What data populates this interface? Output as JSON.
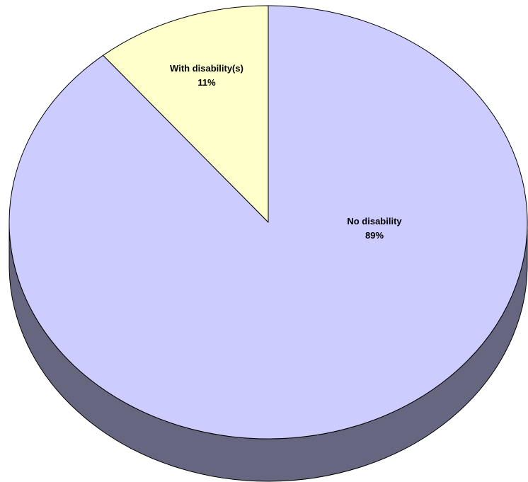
{
  "chart_data": {
    "type": "pie",
    "style": "3d",
    "title": "",
    "slices": [
      {
        "name": "No disability",
        "value": 89,
        "label": "89%",
        "color": "#CCCCFF",
        "side_color": "#666680"
      },
      {
        "name": "With disability(s)",
        "value": 11,
        "label": "11%",
        "color": "#FFFFCC",
        "side_color": "#808066"
      }
    ],
    "legend": "none",
    "data_labels": "category name and percent inside slices"
  }
}
